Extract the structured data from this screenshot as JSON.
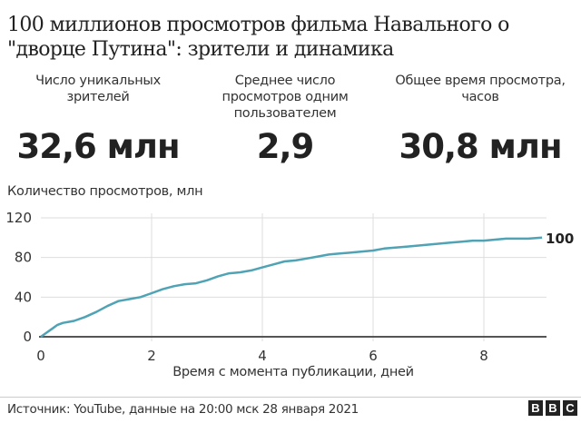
{
  "title": "100 миллионов просмотров фильма Навального о \"дворце Путина\": зрители и динамика",
  "stats": [
    {
      "label": "Число уникальных зрителей",
      "value": "32,6 млн"
    },
    {
      "label": "Среднее число просмотров одним пользователем",
      "value": "2,9"
    },
    {
      "label": "Общее время просмотра, часов",
      "value": "30,8 млн"
    }
  ],
  "footer": {
    "source": "Источник: YouTube, данные на 20:00 мск 28 января 2021",
    "logo": [
      "B",
      "B",
      "C"
    ]
  },
  "colors": {
    "line": "#4fa3b5",
    "axis": "#555555",
    "grid": "#dddddd"
  },
  "chart_data": {
    "type": "line",
    "title": "100 миллионов просмотров фильма Навального о \"дворце Путина\": зрители и динамика",
    "ylabel": "Количество просмотров, млн",
    "xlabel": "Время с момента публикации, дней",
    "xlim": [
      0,
      9.1
    ],
    "ylim": [
      0,
      120
    ],
    "xticks": [
      0,
      2,
      4,
      6,
      8
    ],
    "yticks": [
      0,
      40,
      80,
      120
    ],
    "grid": true,
    "end_label": "100",
    "series": [
      {
        "name": "Просмотры, млн",
        "x": [
          0,
          0.1,
          0.2,
          0.3,
          0.4,
          0.5,
          0.6,
          0.8,
          1.0,
          1.2,
          1.4,
          1.6,
          1.8,
          2.0,
          2.2,
          2.4,
          2.6,
          2.8,
          3.0,
          3.2,
          3.4,
          3.6,
          3.8,
          4.0,
          4.2,
          4.4,
          4.6,
          4.8,
          5.0,
          5.2,
          5.4,
          5.6,
          5.8,
          6.0,
          6.2,
          6.4,
          6.6,
          6.8,
          7.0,
          7.2,
          7.4,
          7.6,
          7.8,
          8.0,
          8.2,
          8.4,
          8.6,
          8.8,
          9.05
        ],
        "values": [
          0,
          4,
          8,
          12,
          14,
          15,
          16,
          20,
          25,
          31,
          36,
          38,
          40,
          44,
          48,
          51,
          53,
          54,
          57,
          61,
          64,
          65,
          67,
          70,
          73,
          76,
          77,
          79,
          81,
          83,
          84,
          85,
          86,
          87,
          89,
          90,
          91,
          92,
          93,
          94,
          95,
          96,
          97,
          97,
          98,
          99,
          99,
          99,
          100
        ]
      }
    ]
  }
}
